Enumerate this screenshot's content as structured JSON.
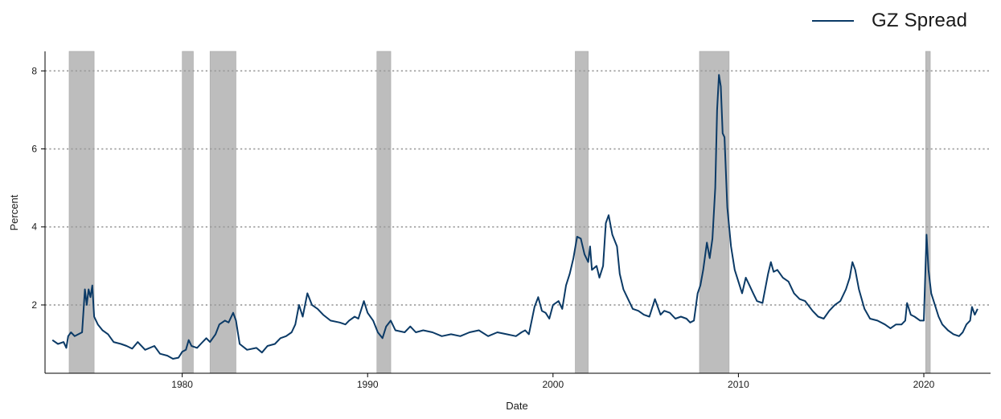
{
  "chart_data": {
    "type": "line",
    "xlabel": "Date",
    "ylabel": "Percent",
    "xlim": [
      1972.6,
      2023.6
    ],
    "ylim": [
      0.25,
      8.5
    ],
    "x_ticks": [
      1980,
      1990,
      2000,
      2010,
      2020
    ],
    "y_ticks": [
      2,
      4,
      6,
      8
    ],
    "grid": "horizontal dotted",
    "legend_position": "top-right",
    "colors": {
      "series": "#0b3a66",
      "recession": "#bdbdbd",
      "grid": "#9a9a9a",
      "axis": "#000000"
    },
    "recessions": [
      [
        1973.9,
        1975.25
      ],
      [
        1980.0,
        1980.6
      ],
      [
        1981.5,
        1982.9
      ],
      [
        1990.5,
        1991.25
      ],
      [
        2001.2,
        2001.9
      ],
      [
        2007.9,
        2009.5
      ],
      [
        2020.1,
        2020.35
      ]
    ],
    "series": [
      {
        "name": "GZ Spread",
        "color": "#0b3a66",
        "points": [
          [
            1973.0,
            1.1
          ],
          [
            1973.3,
            1.0
          ],
          [
            1973.6,
            1.05
          ],
          [
            1973.75,
            0.9
          ],
          [
            1973.85,
            1.2
          ],
          [
            1974.0,
            1.3
          ],
          [
            1974.2,
            1.2
          ],
          [
            1974.4,
            1.25
          ],
          [
            1974.6,
            1.3
          ],
          [
            1974.75,
            2.4
          ],
          [
            1974.85,
            2.0
          ],
          [
            1974.95,
            2.4
          ],
          [
            1975.05,
            2.2
          ],
          [
            1975.15,
            2.5
          ],
          [
            1975.25,
            1.7
          ],
          [
            1975.45,
            1.5
          ],
          [
            1975.7,
            1.35
          ],
          [
            1976.0,
            1.25
          ],
          [
            1976.3,
            1.05
          ],
          [
            1976.7,
            1.0
          ],
          [
            1977.0,
            0.95
          ],
          [
            1977.3,
            0.88
          ],
          [
            1977.6,
            1.05
          ],
          [
            1978.0,
            0.85
          ],
          [
            1978.5,
            0.95
          ],
          [
            1978.8,
            0.75
          ],
          [
            1979.2,
            0.7
          ],
          [
            1979.5,
            0.62
          ],
          [
            1979.8,
            0.65
          ],
          [
            1980.0,
            0.8
          ],
          [
            1980.2,
            0.85
          ],
          [
            1980.35,
            1.1
          ],
          [
            1980.5,
            0.95
          ],
          [
            1980.8,
            0.9
          ],
          [
            1981.0,
            1.0
          ],
          [
            1981.3,
            1.15
          ],
          [
            1981.5,
            1.05
          ],
          [
            1981.8,
            1.25
          ],
          [
            1982.0,
            1.5
          ],
          [
            1982.3,
            1.6
          ],
          [
            1982.5,
            1.55
          ],
          [
            1982.75,
            1.8
          ],
          [
            1982.9,
            1.6
          ],
          [
            1983.1,
            1.0
          ],
          [
            1983.5,
            0.85
          ],
          [
            1984.0,
            0.9
          ],
          [
            1984.3,
            0.78
          ],
          [
            1984.6,
            0.95
          ],
          [
            1985.0,
            1.0
          ],
          [
            1985.3,
            1.15
          ],
          [
            1985.6,
            1.2
          ],
          [
            1985.9,
            1.3
          ],
          [
            1986.1,
            1.5
          ],
          [
            1986.3,
            2.0
          ],
          [
            1986.5,
            1.7
          ],
          [
            1986.75,
            2.3
          ],
          [
            1987.0,
            2.0
          ],
          [
            1987.3,
            1.9
          ],
          [
            1987.6,
            1.75
          ],
          [
            1988.0,
            1.6
          ],
          [
            1988.5,
            1.55
          ],
          [
            1988.8,
            1.5
          ],
          [
            1989.0,
            1.6
          ],
          [
            1989.3,
            1.7
          ],
          [
            1989.5,
            1.65
          ],
          [
            1989.8,
            2.1
          ],
          [
            1990.0,
            1.8
          ],
          [
            1990.3,
            1.6
          ],
          [
            1990.55,
            1.3
          ],
          [
            1990.8,
            1.15
          ],
          [
            1991.0,
            1.45
          ],
          [
            1991.25,
            1.6
          ],
          [
            1991.5,
            1.35
          ],
          [
            1992.0,
            1.3
          ],
          [
            1992.3,
            1.45
          ],
          [
            1992.6,
            1.3
          ],
          [
            1993.0,
            1.35
          ],
          [
            1993.5,
            1.3
          ],
          [
            1994.0,
            1.2
          ],
          [
            1994.5,
            1.25
          ],
          [
            1995.0,
            1.2
          ],
          [
            1995.5,
            1.3
          ],
          [
            1996.0,
            1.35
          ],
          [
            1996.5,
            1.2
          ],
          [
            1997.0,
            1.3
          ],
          [
            1997.5,
            1.25
          ],
          [
            1998.0,
            1.2
          ],
          [
            1998.3,
            1.3
          ],
          [
            1998.5,
            1.35
          ],
          [
            1998.7,
            1.25
          ],
          [
            1999.0,
            1.95
          ],
          [
            1999.2,
            2.2
          ],
          [
            1999.4,
            1.85
          ],
          [
            1999.6,
            1.8
          ],
          [
            1999.8,
            1.65
          ],
          [
            2000.0,
            2.0
          ],
          [
            2000.3,
            2.1
          ],
          [
            2000.5,
            1.9
          ],
          [
            2000.7,
            2.5
          ],
          [
            2000.9,
            2.8
          ],
          [
            2001.1,
            3.2
          ],
          [
            2001.3,
            3.75
          ],
          [
            2001.5,
            3.7
          ],
          [
            2001.7,
            3.3
          ],
          [
            2001.9,
            3.1
          ],
          [
            2002.0,
            3.5
          ],
          [
            2002.1,
            2.9
          ],
          [
            2002.35,
            3.0
          ],
          [
            2002.5,
            2.7
          ],
          [
            2002.7,
            3.0
          ],
          [
            2002.85,
            4.1
          ],
          [
            2003.0,
            4.3
          ],
          [
            2003.2,
            3.8
          ],
          [
            2003.45,
            3.5
          ],
          [
            2003.6,
            2.8
          ],
          [
            2003.8,
            2.4
          ],
          [
            2004.0,
            2.2
          ],
          [
            2004.3,
            1.9
          ],
          [
            2004.6,
            1.85
          ],
          [
            2004.9,
            1.75
          ],
          [
            2005.2,
            1.7
          ],
          [
            2005.5,
            2.15
          ],
          [
            2005.8,
            1.75
          ],
          [
            2006.0,
            1.85
          ],
          [
            2006.3,
            1.8
          ],
          [
            2006.6,
            1.65
          ],
          [
            2006.9,
            1.7
          ],
          [
            2007.2,
            1.65
          ],
          [
            2007.4,
            1.55
          ],
          [
            2007.6,
            1.6
          ],
          [
            2007.8,
            2.3
          ],
          [
            2007.95,
            2.5
          ],
          [
            2008.1,
            2.9
          ],
          [
            2008.3,
            3.6
          ],
          [
            2008.45,
            3.2
          ],
          [
            2008.6,
            3.7
          ],
          [
            2008.75,
            5.0
          ],
          [
            2008.85,
            7.0
          ],
          [
            2008.95,
            7.9
          ],
          [
            2009.05,
            7.6
          ],
          [
            2009.15,
            6.4
          ],
          [
            2009.25,
            6.3
          ],
          [
            2009.4,
            4.5
          ],
          [
            2009.6,
            3.5
          ],
          [
            2009.8,
            2.9
          ],
          [
            2010.0,
            2.6
          ],
          [
            2010.2,
            2.3
          ],
          [
            2010.4,
            2.7
          ],
          [
            2010.6,
            2.5
          ],
          [
            2010.8,
            2.3
          ],
          [
            2011.0,
            2.1
          ],
          [
            2011.3,
            2.05
          ],
          [
            2011.6,
            2.8
          ],
          [
            2011.75,
            3.1
          ],
          [
            2011.9,
            2.85
          ],
          [
            2012.1,
            2.9
          ],
          [
            2012.4,
            2.7
          ],
          [
            2012.7,
            2.6
          ],
          [
            2013.0,
            2.3
          ],
          [
            2013.3,
            2.15
          ],
          [
            2013.6,
            2.1
          ],
          [
            2014.0,
            1.85
          ],
          [
            2014.3,
            1.7
          ],
          [
            2014.6,
            1.65
          ],
          [
            2014.9,
            1.85
          ],
          [
            2015.2,
            2.0
          ],
          [
            2015.5,
            2.1
          ],
          [
            2015.8,
            2.4
          ],
          [
            2016.0,
            2.7
          ],
          [
            2016.15,
            3.1
          ],
          [
            2016.3,
            2.9
          ],
          [
            2016.5,
            2.4
          ],
          [
            2016.8,
            1.9
          ],
          [
            2017.1,
            1.65
          ],
          [
            2017.5,
            1.6
          ],
          [
            2017.9,
            1.5
          ],
          [
            2018.2,
            1.4
          ],
          [
            2018.5,
            1.5
          ],
          [
            2018.8,
            1.5
          ],
          [
            2019.0,
            1.6
          ],
          [
            2019.1,
            2.05
          ],
          [
            2019.3,
            1.75
          ],
          [
            2019.5,
            1.7
          ],
          [
            2019.8,
            1.6
          ],
          [
            2020.0,
            1.6
          ],
          [
            2020.15,
            3.8
          ],
          [
            2020.25,
            2.9
          ],
          [
            2020.4,
            2.3
          ],
          [
            2020.6,
            2.0
          ],
          [
            2020.8,
            1.7
          ],
          [
            2021.0,
            1.5
          ],
          [
            2021.3,
            1.35
          ],
          [
            2021.6,
            1.25
          ],
          [
            2021.9,
            1.2
          ],
          [
            2022.1,
            1.3
          ],
          [
            2022.3,
            1.5
          ],
          [
            2022.5,
            1.6
          ],
          [
            2022.6,
            1.95
          ],
          [
            2022.75,
            1.75
          ],
          [
            2022.9,
            1.9
          ]
        ]
      }
    ]
  }
}
